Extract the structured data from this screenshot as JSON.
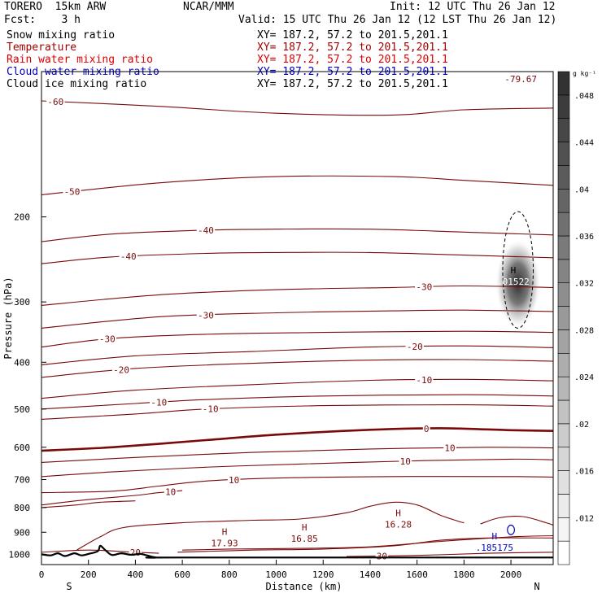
{
  "header": {
    "model": "TORERO  15km ARW",
    "center": "NCAR/MMM",
    "init": "Init: 12 UTC Thu 26 Jan 12",
    "fcst": "Fcst:    3 h",
    "valid": "Valid: 15 UTC Thu 26 Jan 12 (12 LST Thu 26 Jan 12)"
  },
  "fields": [
    {
      "name": "Snow mixing ratio",
      "xy": "XY= 187.2, 57.2 to 201.5,201.1",
      "color": "#000000"
    },
    {
      "name": "Temperature",
      "xy": "XY= 187.2, 57.2 to 201.5,201.1",
      "color": "#a00000"
    },
    {
      "name": "Rain water mixing ratio",
      "xy": "XY= 187.2, 57.2 to 201.5,201.1",
      "color": "#e00000"
    },
    {
      "name": "Cloud water mixing ratio",
      "xy": "XY= 187.2, 57.2 to 201.5,201.1",
      "color": "#0000c0"
    },
    {
      "name": "Cloud ice mixing ratio",
      "xy": "XY= 187.2, 57.2 to 201.5,201.1",
      "color": "#000000"
    }
  ],
  "colors": {
    "temperature": "#7a0a0a",
    "cloud_water": "#0000c0",
    "terrain": "#000000",
    "snow_shading": "#555555"
  },
  "chart_data": {
    "type": "contour",
    "xlabel": "Distance (km)",
    "ylabel": "Pressure (hPa)",
    "xlim": [
      0,
      2180
    ],
    "ylim": [
      1050,
      100
    ],
    "y_scale": "log",
    "x_ticks": [
      0,
      200,
      400,
      600,
      800,
      1000,
      1200,
      1400,
      1600,
      1800,
      2000
    ],
    "y_ticks": [
      200,
      300,
      400,
      500,
      600,
      700,
      800,
      900,
      1000
    ],
    "end_labels": {
      "left": "S",
      "right": "N"
    },
    "temperature_contours": [
      {
        "level": -60,
        "points": [
          [
            0,
            115
          ],
          [
            500,
            118
          ],
          [
            1000,
            122
          ],
          [
            1500,
            123
          ],
          [
            1800,
            120
          ],
          [
            2180,
            119
          ]
        ],
        "label_x": 60
      },
      {
        "level": -50,
        "points": [
          [
            0,
            180
          ],
          [
            500,
            170
          ],
          [
            1000,
            165
          ],
          [
            1500,
            165
          ],
          [
            1800,
            168
          ],
          [
            2180,
            172
          ]
        ],
        "label_x": 130
      },
      {
        "level": -40,
        "points": [
          [
            0,
            225
          ],
          [
            300,
            217
          ],
          [
            700,
            213
          ],
          [
            1000,
            212
          ],
          [
            1400,
            212
          ],
          [
            1800,
            215
          ],
          [
            2180,
            218
          ]
        ],
        "label_x": 700
      },
      {
        "level": -40,
        "points": [
          [
            0,
            250
          ],
          [
            300,
            242
          ],
          [
            700,
            238
          ],
          [
            1000,
            237
          ],
          [
            1400,
            237
          ],
          [
            1800,
            240
          ],
          [
            2180,
            243
          ]
        ],
        "label_x": 370
      },
      {
        "level": -30,
        "points": [
          [
            0,
            305
          ],
          [
            500,
            290
          ],
          [
            1000,
            283
          ],
          [
            1500,
            280
          ],
          [
            1800,
            278
          ],
          [
            2180,
            280
          ]
        ],
        "label_x": 1630
      },
      {
        "level": -30,
        "points": [
          [
            0,
            340
          ],
          [
            500,
            322
          ],
          [
            1000,
            316
          ],
          [
            1500,
            313
          ],
          [
            1800,
            312
          ],
          [
            2180,
            314
          ]
        ],
        "label_x": 700
      },
      {
        "level": -30,
        "points": [
          [
            0,
            372
          ],
          [
            300,
            357
          ],
          [
            700,
            350
          ],
          [
            1200,
            347
          ],
          [
            1800,
            345
          ],
          [
            2180,
            347
          ]
        ],
        "label_x": 280
      },
      {
        "level": -20,
        "points": [
          [
            0,
            405
          ],
          [
            400,
            388
          ],
          [
            900,
            380
          ],
          [
            1400,
            372
          ],
          [
            1800,
            370
          ],
          [
            2180,
            373
          ]
        ],
        "label_x": 1590
      },
      {
        "level": -20,
        "points": [
          [
            0,
            430
          ],
          [
            400,
            412
          ],
          [
            900,
            402
          ],
          [
            1400,
            396
          ],
          [
            1800,
            395
          ],
          [
            2180,
            398
          ]
        ],
        "label_x": 340
      },
      {
        "level": -10,
        "points": [
          [
            0,
            475
          ],
          [
            400,
            457
          ],
          [
            900,
            445
          ],
          [
            1400,
            436
          ],
          [
            1800,
            434
          ],
          [
            2180,
            437
          ]
        ],
        "label_x": 1630
      },
      {
        "level": -10,
        "points": [
          [
            0,
            500
          ],
          [
            400,
            487
          ],
          [
            700,
            478
          ],
          [
            1200,
            470
          ],
          [
            1800,
            467
          ],
          [
            2180,
            470
          ]
        ],
        "label_x": 500
      },
      {
        "level": -10,
        "points": [
          [
            0,
            525
          ],
          [
            400,
            512
          ],
          [
            700,
            500
          ],
          [
            1200,
            492
          ],
          [
            1800,
            490
          ],
          [
            2180,
            493
          ]
        ],
        "label_x": 720
      },
      {
        "level": 0,
        "points": [
          [
            0,
            610
          ],
          [
            300,
            600
          ],
          [
            700,
            580
          ],
          [
            1000,
            565
          ],
          [
            1400,
            552
          ],
          [
            1700,
            548
          ],
          [
            2000,
            553
          ],
          [
            2180,
            555
          ]
        ],
        "label_x": 1640,
        "bold": true
      },
      {
        "level": 10,
        "points": [
          [
            0,
            645
          ],
          [
            400,
            630
          ],
          [
            900,
            615
          ],
          [
            1400,
            605
          ],
          [
            1900,
            600
          ],
          [
            2180,
            602
          ]
        ],
        "label_x": 1740
      },
      {
        "level": 10,
        "points": [
          [
            0,
            690
          ],
          [
            300,
            675
          ],
          [
            700,
            660
          ],
          [
            1100,
            650
          ],
          [
            1600,
            640
          ],
          [
            2000,
            635
          ],
          [
            2180,
            637
          ]
        ],
        "label_x": 1550
      },
      {
        "level": 10,
        "points": [
          [
            0,
            745
          ],
          [
            300,
            740
          ],
          [
            500,
            722
          ],
          [
            700,
            705
          ],
          [
            1000,
            695
          ],
          [
            1500,
            690
          ],
          [
            2000,
            690
          ],
          [
            2180,
            692
          ]
        ],
        "label_x": 820
      },
      {
        "level": 10,
        "points": [
          [
            0,
            790
          ],
          [
            200,
            770
          ],
          [
            400,
            755
          ],
          [
            500,
            745
          ],
          [
            600,
            738
          ]
        ],
        "label_x": 550
      },
      {
        "level": 20,
        "points": [
          [
            0,
            800
          ],
          [
            150,
            790
          ],
          [
            250,
            780
          ],
          [
            400,
            775
          ]
        ]
      },
      {
        "level": 20,
        "points": [
          [
            150,
            980
          ],
          [
            250,
            920
          ],
          [
            350,
            880
          ],
          [
            600,
            860
          ],
          [
            900,
            850
          ],
          [
            1100,
            845
          ],
          [
            1300,
            820
          ],
          [
            1400,
            795
          ],
          [
            1500,
            780
          ],
          [
            1600,
            790
          ],
          [
            1700,
            830
          ],
          [
            1780,
            855
          ],
          [
            1800,
            860
          ]
        ]
      },
      {
        "level": 20,
        "points": [
          [
            1870,
            865
          ],
          [
            1950,
            840
          ],
          [
            2050,
            835
          ],
          [
            2150,
            860
          ],
          [
            2180,
            870
          ]
        ]
      },
      {
        "level": 20,
        "points": [
          [
            0,
            990
          ],
          [
            200,
            980
          ],
          [
            400,
            990
          ],
          [
            500,
            995
          ]
        ],
        "label_x": 400
      },
      {
        "level": 20,
        "points": [
          [
            600,
            980
          ],
          [
            800,
            975
          ],
          [
            1100,
            972
          ],
          [
            1400,
            965
          ],
          [
            1700,
            940
          ],
          [
            2000,
            920
          ],
          [
            2180,
            915
          ]
        ]
      },
      {
        "level": 30,
        "points": [
          [
            580,
            990
          ],
          [
            900,
            980
          ],
          [
            1200,
            975
          ],
          [
            1500,
            960
          ],
          [
            1700,
            935
          ],
          [
            1900,
            925
          ],
          [
            2180,
            925
          ]
        ]
      },
      {
        "level": 30,
        "points": [
          [
            1300,
            1010
          ],
          [
            1600,
            1005
          ],
          [
            1900,
            995
          ],
          [
            2180,
            990
          ]
        ],
        "label_x": 1450
      }
    ],
    "high_labels": [
      {
        "x": 780,
        "p": 940,
        "value": "17.93",
        "series": "temperature"
      },
      {
        "x": 1120,
        "p": 920,
        "value": "16.85",
        "series": "temperature"
      },
      {
        "x": 1520,
        "p": 860,
        "value": "16.28",
        "series": "temperature"
      },
      {
        "x": 1930,
        "p": 960,
        "value": ".185175",
        "series": "cloud_water"
      },
      {
        "x": 2010,
        "p": 270,
        "value": ".01522",
        "series": "snow"
      }
    ],
    "cloud_ice_contour": {
      "center": [
        2030,
        265
      ],
      "x_half_width": 65,
      "p_top": 195,
      "p_bottom": 340
    },
    "cloud_water_contour": {
      "center": [
        2000,
        890
      ],
      "x_half_width": 15,
      "p_top": 870,
      "p_bottom": 910
    },
    "snow_max": {
      "x": 2030,
      "p": 275,
      "value": 0.01522
    },
    "corner_label": "-79.67",
    "terrain": [
      [
        0,
        1000
      ],
      [
        40,
        1005
      ],
      [
        70,
        995
      ],
      [
        100,
        1008
      ],
      [
        140,
        995
      ],
      [
        170,
        1005
      ],
      [
        200,
        998
      ],
      [
        240,
        985
      ],
      [
        250,
        960
      ],
      [
        270,
        978
      ],
      [
        300,
        1003
      ],
      [
        340,
        995
      ],
      [
        380,
        1002
      ],
      [
        420,
        998
      ],
      [
        450,
        1005
      ],
      [
        490,
        1015
      ],
      [
        600,
        1015
      ],
      [
        2180,
        1015
      ]
    ],
    "colorbar": {
      "unit": "g kg⁻¹",
      "labels": [
        ".012",
        ".016",
        ".02",
        ".024",
        ".028",
        ".032",
        ".036",
        ".04",
        ".044",
        ".048"
      ],
      "bins": [
        0.008,
        0.01,
        0.012,
        0.014,
        0.016,
        0.018,
        0.02,
        0.022,
        0.024,
        0.026,
        0.028,
        0.03,
        0.032,
        0.034,
        0.036,
        0.038,
        0.04,
        0.042,
        0.044,
        0.046,
        0.048,
        0.05
      ]
    }
  }
}
